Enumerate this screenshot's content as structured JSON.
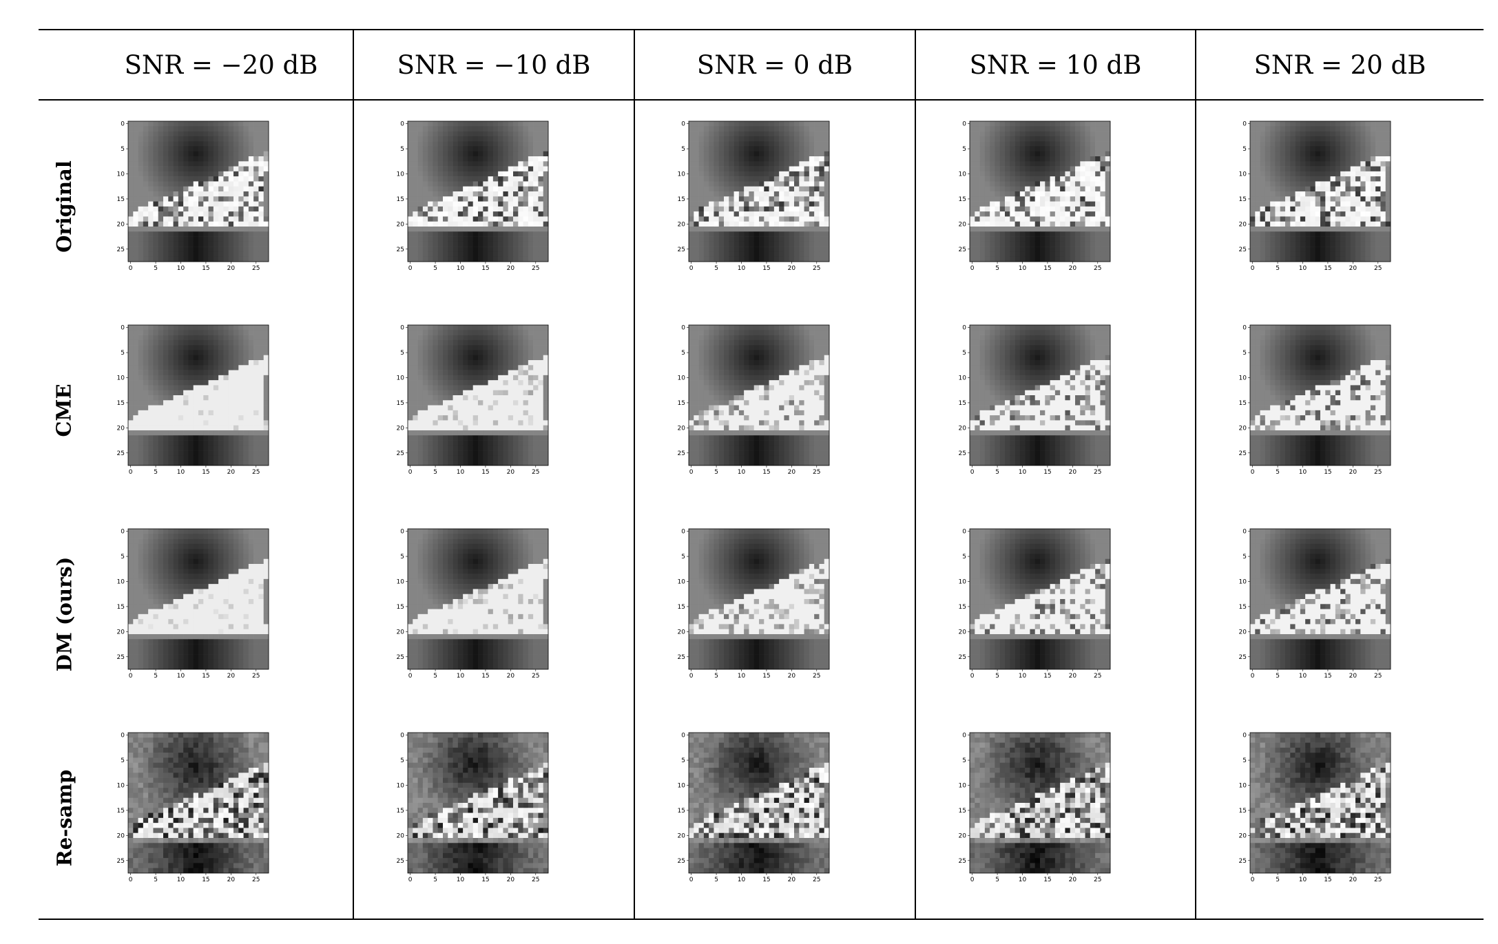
{
  "columns": [
    {
      "label": "SNR = −20 dB"
    },
    {
      "label": "SNR = −10 dB"
    },
    {
      "label": "SNR = 0 dB"
    },
    {
      "label": "SNR = 10 dB"
    },
    {
      "label": "SNR = 20 dB"
    }
  ],
  "rows": [
    {
      "label": "Original"
    },
    {
      "label": "CME"
    },
    {
      "label": "DM (ours)"
    },
    {
      "label": "Re-samp"
    }
  ],
  "axis_ticks": {
    "x": [
      "0",
      "5",
      "10",
      "15",
      "20",
      "25"
    ],
    "y": [
      "0",
      "5",
      "10",
      "15",
      "20",
      "25"
    ]
  },
  "image": {
    "grid_size": 28,
    "subject": "sneaker",
    "colormap": "grayscale"
  }
}
